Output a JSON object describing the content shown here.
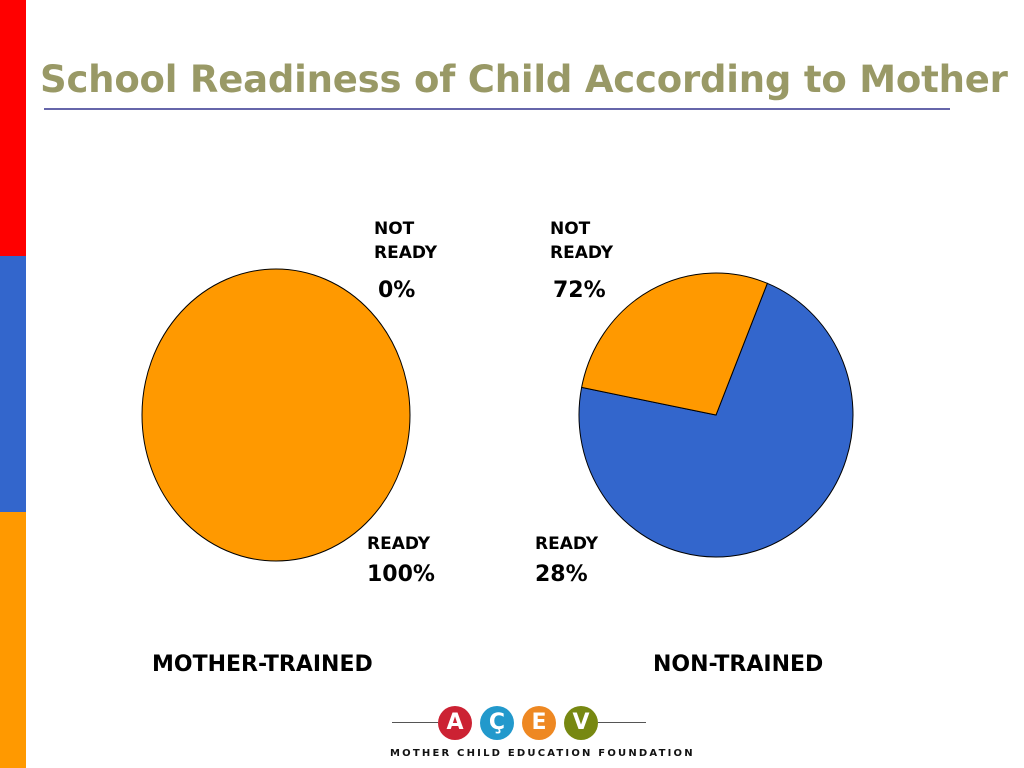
{
  "title": "School Readiness of Child According to Mother",
  "colors": {
    "title": "#999966",
    "rule": "#6666aa",
    "bar_red": "#ff0000",
    "bar_blue": "#3366cc",
    "bar_orange": "#ff9900",
    "ready": "#ff9900",
    "not_ready": "#3366cc"
  },
  "chart_data": [
    {
      "type": "pie",
      "group": "MOTHER-TRAINED",
      "slices": [
        {
          "label": "NOT READY",
          "value": 0,
          "display": "0%"
        },
        {
          "label": "READY",
          "value": 100,
          "display": "100%"
        }
      ]
    },
    {
      "type": "pie",
      "group": "NON-TRAINED",
      "slices": [
        {
          "label": "NOT READY",
          "value": 72,
          "display": "72%"
        },
        {
          "label": "READY",
          "value": 28,
          "display": "28%"
        }
      ]
    }
  ],
  "logo": {
    "letters": [
      "A",
      "Ç",
      "E",
      "V"
    ],
    "colors": [
      "#cc2233",
      "#2299cc",
      "#ee8822",
      "#778811"
    ],
    "tagline": "MOTHER CHILD EDUCATION FOUNDATION"
  }
}
